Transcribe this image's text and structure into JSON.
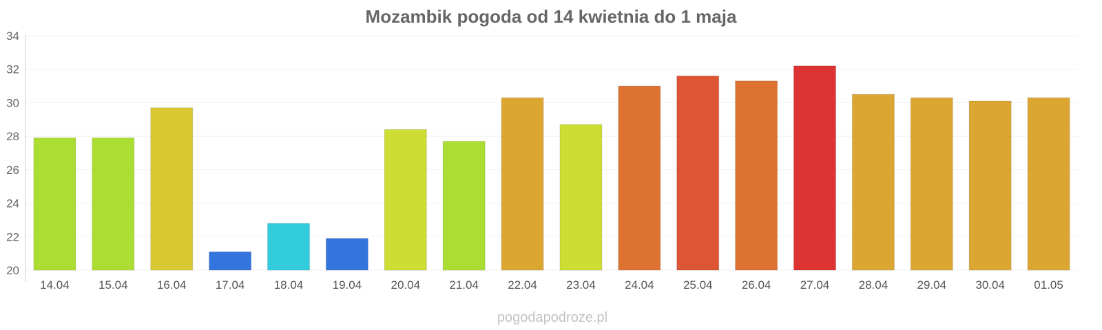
{
  "chart_data": {
    "type": "bar",
    "title": "Mozambik pogoda od 14 kwietnia do 1 maja",
    "source": "pogodapodroze.pl",
    "categories": [
      "14.04",
      "15.04",
      "16.04",
      "17.04",
      "18.04",
      "19.04",
      "20.04",
      "21.04",
      "22.04",
      "23.04",
      "24.04",
      "25.04",
      "26.04",
      "27.04",
      "28.04",
      "29.04",
      "30.04",
      "01.05"
    ],
    "values": [
      27.9,
      27.9,
      29.7,
      21.1,
      22.8,
      21.9,
      28.4,
      27.7,
      30.3,
      28.7,
      31.0,
      31.6,
      31.3,
      32.2,
      30.5,
      30.3,
      30.1,
      30.3
    ],
    "colors": [
      "#abdd33",
      "#abdd33",
      "#dac832",
      "#3375dd",
      "#33ccdd",
      "#3375dd",
      "#cddd33",
      "#abdd33",
      "#dca633",
      "#cddd33",
      "#dd7233",
      "#dd5533",
      "#dd7233",
      "#dd3333",
      "#dca633",
      "#dca633",
      "#dca633",
      "#dca633"
    ],
    "ylim": [
      20,
      34
    ],
    "yticks": [
      "20",
      "22",
      "24",
      "26",
      "28",
      "30",
      "32",
      "34"
    ],
    "xlabel": "",
    "ylabel": "",
    "grid": true,
    "legend": "none"
  }
}
